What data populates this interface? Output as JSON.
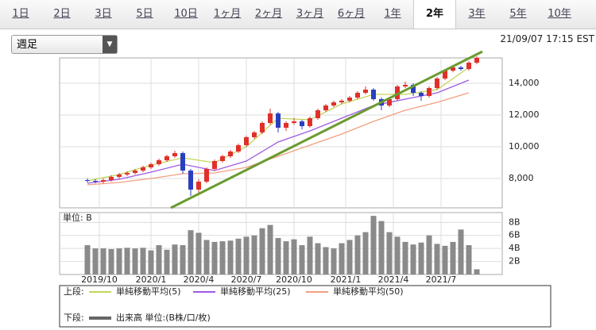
{
  "tabs": [
    "1日",
    "2日",
    "3日",
    "5日",
    "10日",
    "1ヶ月",
    "2ヶ月",
    "3ヶ月",
    "6ヶ月",
    "1年",
    "2年",
    "3年",
    "5年",
    "10年"
  ],
  "selected_tab": 10,
  "dropdown": "週足",
  "timestamp": "21/09/07 17:15 EST",
  "chart_data": {
    "type": "candlestick",
    "up_color": "#e0302a",
    "down_color": "#2a3fc0",
    "grid": true,
    "x": [
      0,
      2,
      4,
      6,
      8,
      10,
      12,
      14,
      16,
      18,
      20,
      22,
      24,
      26,
      28,
      30,
      32,
      34,
      36,
      38,
      40,
      42,
      44,
      46,
      48,
      50,
      52,
      54,
      56,
      58,
      60,
      62,
      64,
      66,
      68,
      70,
      72,
      74,
      76,
      78,
      80,
      82,
      84,
      86,
      88,
      90,
      92,
      94,
      96,
      98
    ],
    "open": [
      7900,
      7850,
      7800,
      7900,
      8100,
      8250,
      8350,
      8500,
      8700,
      8900,
      9150,
      9400,
      9600,
      8500,
      7300,
      7800,
      8600,
      9100,
      9400,
      9700,
      10100,
      10600,
      10900,
      11500,
      12100,
      11200,
      11500,
      11600,
      11300,
      11800,
      12300,
      12600,
      12800,
      12900,
      13100,
      13400,
      13600,
      13000,
      12600,
      13000,
      13800,
      13900,
      13400,
      13200,
      13700,
      14300,
      14800,
      15000,
      14900,
      15300
    ],
    "high": [
      8000,
      7950,
      8000,
      8200,
      8350,
      8450,
      8600,
      8800,
      9000,
      9250,
      9500,
      9750,
      9700,
      8600,
      7950,
      8700,
      9200,
      9500,
      9800,
      10200,
      10700,
      11000,
      11600,
      12400,
      12200,
      11600,
      11800,
      11700,
      11900,
      12400,
      12700,
      12900,
      13000,
      13200,
      13500,
      13800,
      13700,
      13100,
      13100,
      13900,
      14100,
      14000,
      13500,
      13800,
      14400,
      14900,
      15100,
      15100,
      15400,
      15700
    ],
    "low": [
      7750,
      7700,
      7700,
      7800,
      8000,
      8150,
      8250,
      8400,
      8600,
      8800,
      9050,
      9300,
      8300,
      6900,
      7000,
      7700,
      8500,
      9000,
      9300,
      9600,
      10000,
      10500,
      10800,
      11400,
      10900,
      11000,
      11400,
      11100,
      11200,
      11700,
      12200,
      12500,
      12700,
      12800,
      13000,
      13300,
      12900,
      12300,
      12500,
      12900,
      13700,
      13200,
      12900,
      13100,
      13600,
      14200,
      14700,
      14800,
      14800,
      15200
    ],
    "close": [
      7850,
      7800,
      7900,
      8100,
      8250,
      8350,
      8500,
      8700,
      8900,
      9150,
      9400,
      9600,
      8500,
      7300,
      7800,
      8600,
      9100,
      9400,
      9700,
      10100,
      10600,
      10900,
      11500,
      12100,
      11200,
      11500,
      11600,
      11300,
      11800,
      12300,
      12600,
      12800,
      12900,
      13100,
      13400,
      13600,
      13000,
      12600,
      13000,
      13800,
      13900,
      13400,
      13200,
      13700,
      14300,
      14800,
      15000,
      14900,
      15300,
      15600
    ],
    "series": [
      {
        "name": "単純移動平均(5)",
        "color": "#c4d45a",
        "x": [
          0,
          8,
          16,
          24,
          32,
          40,
          48,
          56,
          64,
          72,
          80,
          88,
          96
        ],
        "values": [
          7850,
          8250,
          8850,
          9300,
          9000,
          10000,
          11800,
          11700,
          12700,
          13300,
          13300,
          13600,
          15000
        ]
      },
      {
        "name": "単純移動平均(25)",
        "color": "#a05ae0",
        "x": [
          0,
          8,
          16,
          24,
          32,
          40,
          48,
          56,
          64,
          72,
          80,
          88,
          96
        ],
        "values": [
          7700,
          7950,
          8400,
          8900,
          8500,
          9100,
          10300,
          11000,
          11800,
          12600,
          13000,
          13400,
          14200
        ]
      },
      {
        "name": "単純移動平均(50)",
        "color": "#f0a080",
        "x": [
          0,
          8,
          16,
          24,
          32,
          40,
          48,
          56,
          64,
          72,
          80,
          88,
          96
        ],
        "values": [
          7600,
          7750,
          8000,
          8300,
          8350,
          8700,
          9400,
          10100,
          10800,
          11600,
          12300,
          12800,
          13400
        ]
      }
    ],
    "trendline": {
      "color": "#6a9a30",
      "x": [
        21,
        99.4
      ],
      "values": [
        6150,
        16000
      ]
    },
    "xlim": [
      -7,
      104.4
    ],
    "xticks": [
      {
        "value": 3,
        "label": "2019/10"
      },
      {
        "value": 16,
        "label": "2020/1"
      },
      {
        "value": 28,
        "label": "2020/4"
      },
      {
        "value": 40,
        "label": "2020/7"
      },
      {
        "value": 52,
        "label": "2020/10"
      },
      {
        "value": 65,
        "label": "2021/1"
      },
      {
        "value": 77,
        "label": "2021/4"
      },
      {
        "value": 89,
        "label": "2021/7"
      }
    ],
    "ylim": [
      6150,
      15600
    ],
    "yticks": [
      {
        "value": 8000,
        "label": "8,000"
      },
      {
        "value": 10000,
        "label": "10,000"
      },
      {
        "value": 12000,
        "label": "12,000"
      },
      {
        "value": 14000,
        "label": "14,000"
      }
    ],
    "volume": {
      "name": "出来高 単位:(B株/口/枚)",
      "unit_label": "単位: B",
      "color": "#8a8a8a",
      "values": [
        4.5,
        4.0,
        4.0,
        3.9,
        4.0,
        4.1,
        4.0,
        4.1,
        3.7,
        4.5,
        3.8,
        4.6,
        4.5,
        6.8,
        6.4,
        5.3,
        5.0,
        5.1,
        5.2,
        5.5,
        5.8,
        6.0,
        7.1,
        7.6,
        5.6,
        5.1,
        5.4,
        4.5,
        5.8,
        4.8,
        4.2,
        4.0,
        4.8,
        5.3,
        6.0,
        6.5,
        9.0,
        8.2,
        6.5,
        5.8,
        5.0,
        4.6,
        4.9,
        6.0,
        4.7,
        4.4,
        5.0,
        6.9,
        4.5,
        0.8
      ],
      "ylim": [
        0,
        9.5
      ],
      "yticks": [
        {
          "value": 2,
          "label": "2B"
        },
        {
          "value": 4,
          "label": "4B"
        },
        {
          "value": 6,
          "label": "6B"
        },
        {
          "value": 8,
          "label": "8B"
        }
      ]
    },
    "legend": {
      "upper_label": "上段:",
      "lower_label": "下段:"
    }
  }
}
